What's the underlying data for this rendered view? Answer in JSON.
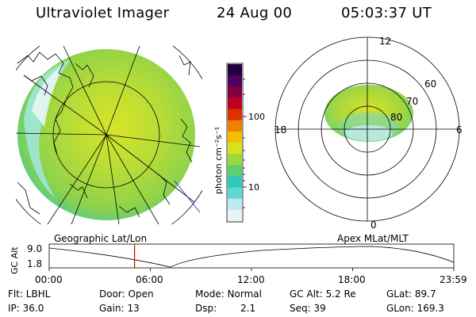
{
  "header": {
    "instrument": "Ultraviolet Imager",
    "date": "24 Aug 00",
    "time": "05:03:37 UT"
  },
  "panels": {
    "left_label": "Geographic Lat/Lon",
    "right_label": "Apex MLat/MLT"
  },
  "colorbar": {
    "unit_label": "photon cm⁻²s⁻¹",
    "tick_100": "100",
    "tick_10": "10",
    "colors": [
      "#e8f4f8",
      "#bfe8f0",
      "#60d8d0",
      "#30c8b8",
      "#5cd070",
      "#9ad840",
      "#d8e020",
      "#f0c000",
      "#f08000",
      "#e03000",
      "#c00020",
      "#800040",
      "#500060",
      "#200040"
    ]
  },
  "polar_grid": {
    "mlt_labels": [
      "12",
      "18",
      "6",
      "0"
    ],
    "lat_labels": [
      "60",
      "70",
      "80"
    ]
  },
  "gc_alt_plot": {
    "axis_label": "GC Alt",
    "y_ticks": [
      "9.0",
      "1.8"
    ],
    "x_ticks": [
      "00:00",
      "06:00",
      "12:00",
      "18:00",
      "23:59"
    ],
    "current_time_hours": 5.06
  },
  "info": {
    "flt": "Flt: LBHL",
    "door": "Door: Open",
    "mode": "Mode: Normal",
    "gcalt": "GC Alt: 5.2 Re",
    "glat": "GLat:  89.7",
    "ip": "IP: 36.0",
    "gain": "Gain: 13",
    "dsp_label": "Dsp:",
    "dsp_val": "2.1",
    "seq": "Seq: 39",
    "glon": "GLon: 169.3"
  }
}
